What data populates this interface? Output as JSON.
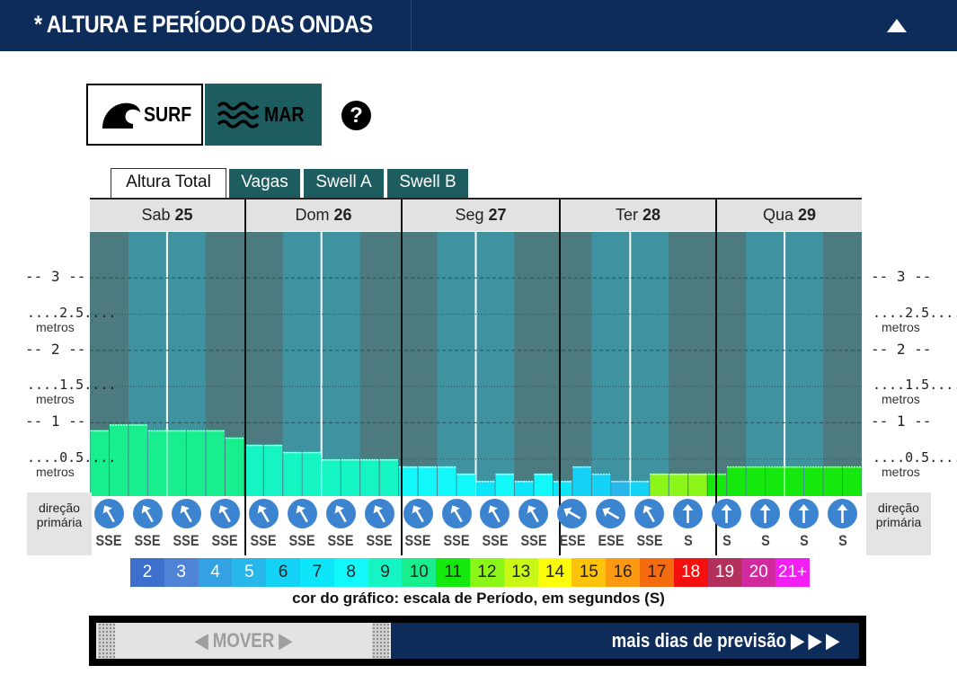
{
  "header": {
    "title": "* ALTURA E PERÍODO DAS ONDAS",
    "collapse_icon": "triangle-up-icon"
  },
  "mode_buttons": [
    {
      "label": "SURF",
      "icon": "wave-icon",
      "active": true
    },
    {
      "label": "MAR",
      "icon": "sea-waves-icon",
      "active": false
    }
  ],
  "help_icon": "question-icon",
  "tabs": [
    {
      "label": "Altura Total",
      "active": true
    },
    {
      "label": "Vagas",
      "active": false
    },
    {
      "label": "Swell A",
      "active": false
    },
    {
      "label": "Swell B",
      "active": false
    }
  ],
  "days": [
    {
      "name": "Sab",
      "num": "25"
    },
    {
      "name": "Dom",
      "num": "26"
    },
    {
      "name": "Seg",
      "num": "27"
    },
    {
      "name": "Ter",
      "num": "28"
    },
    {
      "name": "Qua",
      "num": "29"
    }
  ],
  "y_ticks": [
    {
      "value": "3",
      "unit": ""
    },
    {
      "value": "2.5",
      "unit": "metros"
    },
    {
      "value": "2",
      "unit": ""
    },
    {
      "value": "1.5",
      "unit": "metros"
    },
    {
      "value": "1",
      "unit": ""
    },
    {
      "value": "0.5",
      "unit": "metros"
    }
  ],
  "direction_label_line1": "direção",
  "direction_label_line2": "primária",
  "chart_data": {
    "type": "bar",
    "ylim": [
      0,
      3.5
    ],
    "series": [
      {
        "values": [
          0.9,
          0.98,
          0.98,
          0.9,
          0.9,
          0.9,
          0.9,
          0.8,
          0.7,
          0.7,
          0.6,
          0.6,
          0.5,
          0.5,
          0.5,
          0.5,
          0.4,
          0.4,
          0.4,
          0.3,
          0.2,
          0.3,
          0.2,
          0.3,
          0.2,
          0.4,
          0.3,
          0.2,
          0.2,
          0.3,
          0.3,
          0.3,
          0.3,
          0.4,
          0.4,
          0.4,
          0.4,
          0.4,
          0.4,
          0.4
        ],
        "period_s": [
          10,
          10,
          10,
          10,
          10,
          10,
          10,
          10,
          9,
          9,
          9,
          9,
          9,
          9,
          9,
          9,
          8,
          8,
          8,
          8,
          7,
          8,
          7,
          8,
          7,
          6,
          6,
          5,
          6,
          12,
          12,
          12,
          11,
          11,
          11,
          11,
          11,
          11,
          11,
          11
        ]
      }
    ],
    "directions": [
      {
        "label": "SSE",
        "angle": -30
      },
      {
        "label": "SSE",
        "angle": -30
      },
      {
        "label": "SSE",
        "angle": -30
      },
      {
        "label": "SSE",
        "angle": -30
      },
      {
        "label": "SSE",
        "angle": -30
      },
      {
        "label": "SSE",
        "angle": -30
      },
      {
        "label": "SSE",
        "angle": -30
      },
      {
        "label": "SSE",
        "angle": -30
      },
      {
        "label": "SSE",
        "angle": -30
      },
      {
        "label": "SSE",
        "angle": -30
      },
      {
        "label": "SSE",
        "angle": -30
      },
      {
        "label": "SSE",
        "angle": -30
      },
      {
        "label": "ESE",
        "angle": -60
      },
      {
        "label": "ESE",
        "angle": -60
      },
      {
        "label": "SSE",
        "angle": -30
      },
      {
        "label": "S",
        "angle": 0
      },
      {
        "label": "S",
        "angle": 0
      },
      {
        "label": "S",
        "angle": 0
      },
      {
        "label": "S",
        "angle": 0
      },
      {
        "label": "S",
        "angle": 0
      }
    ]
  },
  "period_scale": [
    {
      "label": "2",
      "color": "#3d6fcc"
    },
    {
      "label": "3",
      "color": "#4f83d6"
    },
    {
      "label": "4",
      "color": "#34a2e2"
    },
    {
      "label": "5",
      "color": "#27b7ea"
    },
    {
      "label": "6",
      "color": "#14d2f5"
    },
    {
      "label": "7",
      "color": "#0de6f8"
    },
    {
      "label": "8",
      "color": "#12f8fa"
    },
    {
      "label": "9",
      "color": "#15f5c3"
    },
    {
      "label": "10",
      "color": "#19ee8f"
    },
    {
      "label": "11",
      "color": "#14e80d"
    },
    {
      "label": "12",
      "color": "#8cf518"
    },
    {
      "label": "13",
      "color": "#c9f716"
    },
    {
      "label": "14",
      "color": "#fbfb0c"
    },
    {
      "label": "15",
      "color": "#fbc30c"
    },
    {
      "label": "16",
      "color": "#fb9911"
    },
    {
      "label": "17",
      "color": "#f56b10"
    },
    {
      "label": "18",
      "color": "#f51010"
    },
    {
      "label": "19",
      "color": "#b3305d"
    },
    {
      "label": "20",
      "color": "#d12a9e"
    },
    {
      "label": "21+",
      "color": "#f21ff2"
    }
  ],
  "caption": "cor do gráfico: escala de Período, em segundos (S)",
  "nav": {
    "mover": "◀ MOVER ▶",
    "more": "mais dias de previsão ▶ ▶ ▶"
  }
}
